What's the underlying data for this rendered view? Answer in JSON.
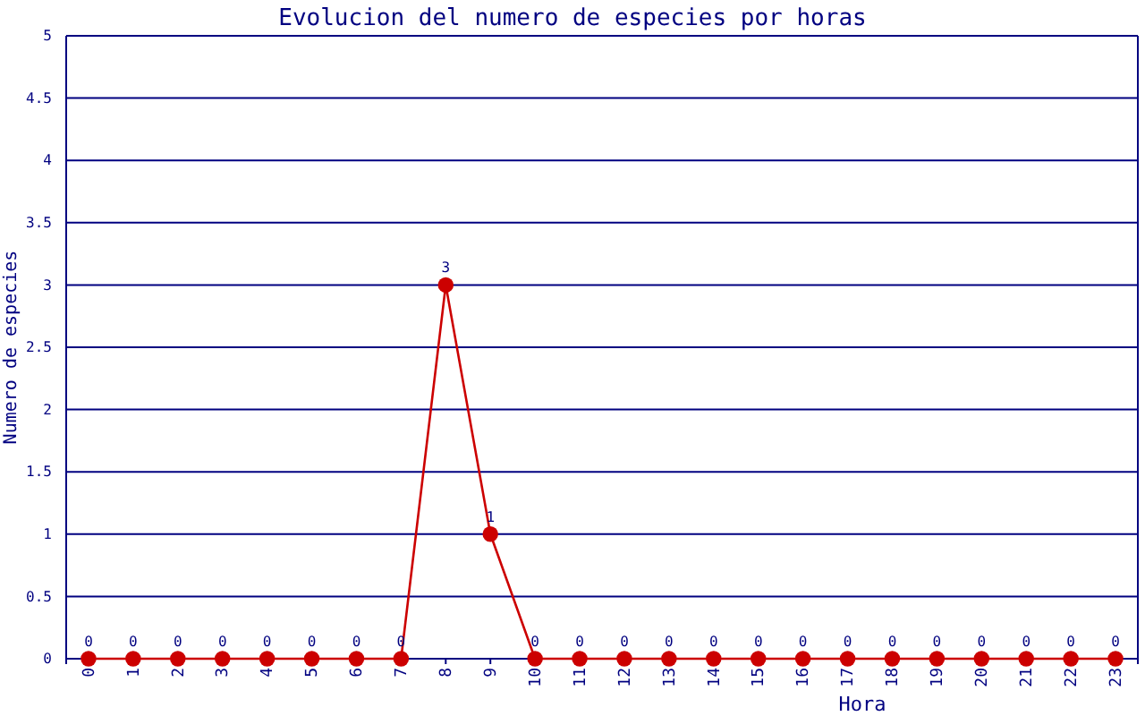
{
  "chart_data": {
    "type": "line",
    "title": "Evolucion del numero de especies por horas",
    "xlabel": "Hora",
    "ylabel": "Numero de especies",
    "categories": [
      "0",
      "1",
      "2",
      "3",
      "4",
      "5",
      "6",
      "7",
      "8",
      "9",
      "10",
      "11",
      "12",
      "13",
      "14",
      "15",
      "16",
      "17",
      "18",
      "19",
      "20",
      "21",
      "22",
      "23"
    ],
    "series": [
      {
        "color": "#cc0000",
        "values": [
          0,
          0,
          0,
          0,
          0,
          0,
          0,
          0,
          3,
          1,
          0,
          0,
          0,
          0,
          0,
          0,
          0,
          0,
          0,
          0,
          0,
          0,
          0,
          0
        ]
      }
    ],
    "ylim": [
      0,
      5
    ],
    "yticks": [
      0,
      0.5,
      1,
      1.5,
      2,
      2.5,
      3,
      3.5,
      4,
      4.5,
      5
    ],
    "grid": "y",
    "marker": "circle",
    "data_labels": true
  }
}
